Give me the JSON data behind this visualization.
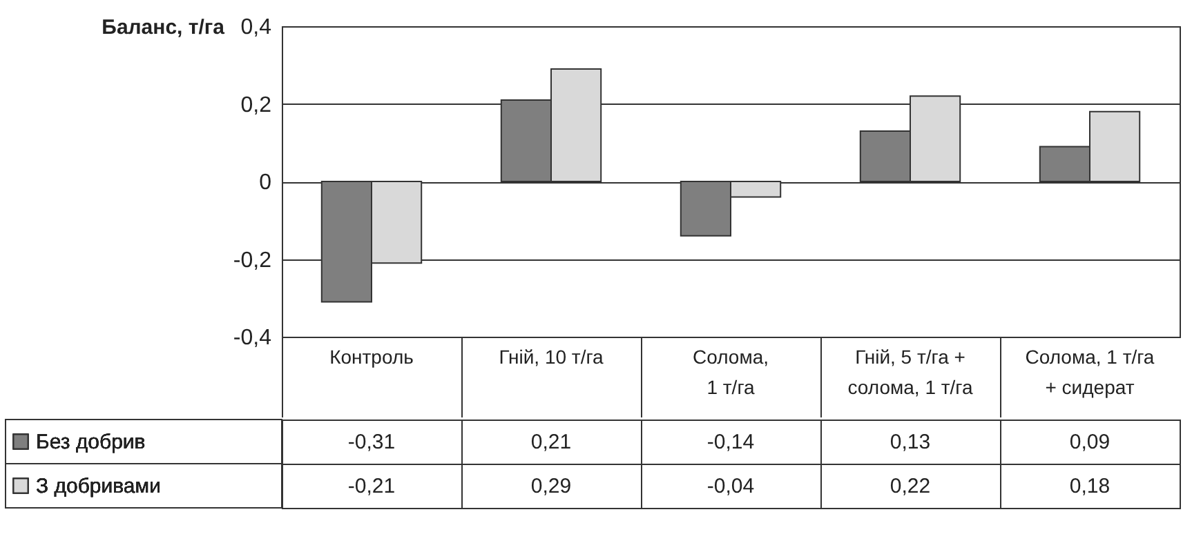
{
  "chart_data": {
    "type": "bar",
    "ylabel": "Баланс, т/га",
    "categories": [
      "Контроль",
      "Гній, 10 т/га",
      "Солома, 1 т/га",
      "Гній, 5 т/га + солома, 1 т/га",
      "Солома, 1 т/га + сидерат"
    ],
    "series": [
      {
        "name": "Без добрив",
        "color": "#7f7f7f",
        "values": [
          -0.31,
          0.21,
          -0.14,
          0.13,
          0.09
        ],
        "value_labels": [
          "-0,31",
          "0,21",
          "-0,14",
          "0,13",
          "0,09"
        ]
      },
      {
        "name": "З добривами",
        "color": "#d9d9d9",
        "values": [
          -0.21,
          0.29,
          -0.04,
          0.22,
          0.18
        ],
        "value_labels": [
          "-0,21",
          "0,29",
          "-0,04",
          "0,22",
          "0,18"
        ]
      }
    ],
    "ylim": [
      -0.4,
      0.4
    ],
    "yticks": [
      {
        "value": -0.4,
        "label": "-0,4"
      },
      {
        "value": -0.2,
        "label": "-0,2"
      },
      0,
      {
        "value": 0.2,
        "label": "0,2"
      },
      {
        "value": 0.4,
        "label": "0,4"
      }
    ],
    "grid": "y",
    "legend": "bottom"
  }
}
